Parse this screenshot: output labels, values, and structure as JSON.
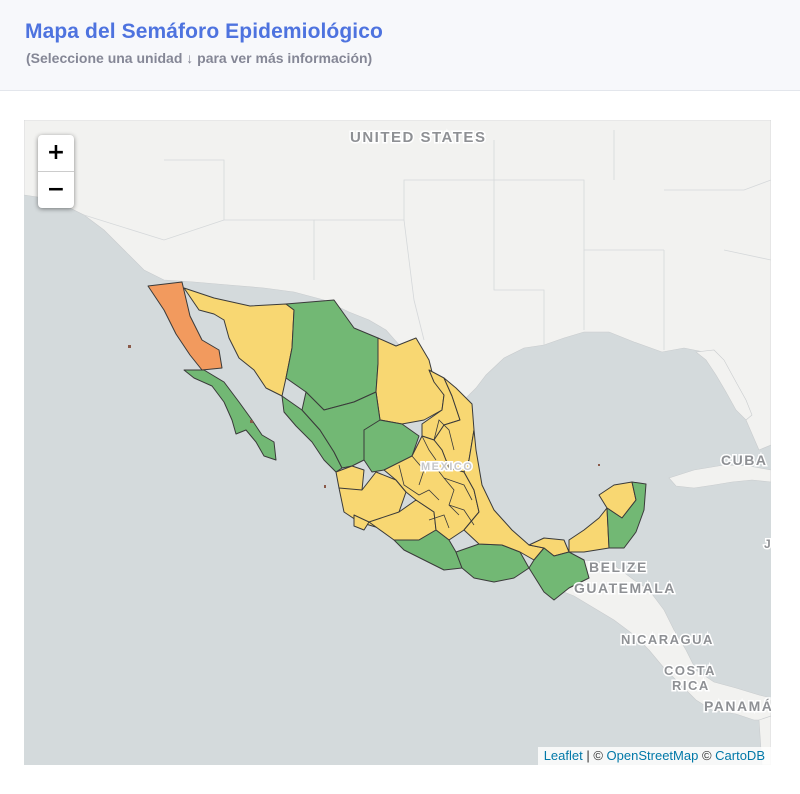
{
  "header": {
    "title": "Mapa del Semáforo Epidemiológico",
    "subtitle": "(Seleccione una unidad ↓ para ver más información)"
  },
  "zoom": {
    "in_label": "+",
    "out_label": "−"
  },
  "map_labels": {
    "usa": "UNITED STATES",
    "mexico": "MEXICO",
    "cuba": "CUBA",
    "belize": "BELIZE",
    "guatemala": "GUATEMALA",
    "nicaragua": "NICARAGUA",
    "costa": "COSTA",
    "rica": "RICA",
    "panama": "PANAMÁ",
    "edge_letter": "J"
  },
  "attribution": {
    "leaflet": "Leaflet",
    "sep": " | © ",
    "osm": "OpenStreetMap",
    "mid": " © ",
    "carto": "CartoDB"
  },
  "legend_colors": {
    "green": "#72b874",
    "yellow": "#f8d772",
    "orange": "#f29a5e"
  },
  "map_status": {
    "baja_california": "orange",
    "baja_california_sur": "green",
    "sonora": "yellow",
    "chihuahua": "green",
    "coahuila": "yellow",
    "nuevo_leon": "yellow",
    "tamaulipas": "yellow",
    "sinaloa": "green",
    "durango": "green",
    "zacatecas": "green",
    "nayarit": "yellow",
    "jalisco": "yellow",
    "colima": "yellow",
    "michoacan": "yellow",
    "guerrero": "green",
    "oaxaca": "green",
    "chiapas": "green",
    "veracruz": "yellow",
    "tabasco": "yellow",
    "campeche": "yellow",
    "yucatan": "yellow",
    "quintana_roo": "green"
  }
}
